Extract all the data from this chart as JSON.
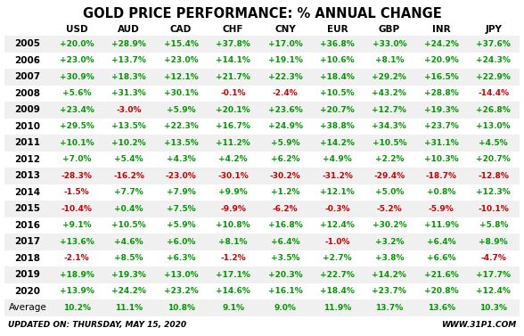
{
  "title": "GOLD PRICE PERFORMANCE: % ANNUAL CHANGE",
  "columns": [
    "USD",
    "AUD",
    "CAD",
    "CHF",
    "CNY",
    "EUR",
    "GBP",
    "INR",
    "JPY"
  ],
  "rows": [
    {
      "year": "2005",
      "values": [
        "+20.0%",
        "+28.9%",
        "+15.4%",
        "+37.8%",
        "+17.0%",
        "+36.8%",
        "+33.0%",
        "+24.2%",
        "+37.6%"
      ]
    },
    {
      "year": "2006",
      "values": [
        "+23.0%",
        "+13.7%",
        "+23.0%",
        "+14.1%",
        "+19.1%",
        "+10.6%",
        "+8.1%",
        "+20.9%",
        "+24.3%"
      ]
    },
    {
      "year": "2007",
      "values": [
        "+30.9%",
        "+18.3%",
        "+12.1%",
        "+21.7%",
        "+22.3%",
        "+18.4%",
        "+29.2%",
        "+16.5%",
        "+22.9%"
      ]
    },
    {
      "year": "2008",
      "values": [
        "+5.6%",
        "+31.3%",
        "+30.1%",
        "-0.1%",
        "-2.4%",
        "+10.5%",
        "+43.2%",
        "+28.8%",
        "-14.4%"
      ]
    },
    {
      "year": "2009",
      "values": [
        "+23.4%",
        "-3.0%",
        "+5.9%",
        "+20.1%",
        "+23.6%",
        "+20.7%",
        "+12.7%",
        "+19.3%",
        "+26.8%"
      ]
    },
    {
      "year": "2010",
      "values": [
        "+29.5%",
        "+13.5%",
        "+22.3%",
        "+16.7%",
        "+24.9%",
        "+38.8%",
        "+34.3%",
        "+23.7%",
        "+13.0%"
      ]
    },
    {
      "year": "2011",
      "values": [
        "+10.1%",
        "+10.2%",
        "+13.5%",
        "+11.2%",
        "+5.9%",
        "+14.2%",
        "+10.5%",
        "+31.1%",
        "+4.5%"
      ]
    },
    {
      "year": "2012",
      "values": [
        "+7.0%",
        "+5.4%",
        "+4.3%",
        "+4.2%",
        "+6.2%",
        "+4.9%",
        "+2.2%",
        "+10.3%",
        "+20.7%"
      ]
    },
    {
      "year": "2013",
      "values": [
        "-28.3%",
        "-16.2%",
        "-23.0%",
        "-30.1%",
        "-30.2%",
        "-31.2%",
        "-29.4%",
        "-18.7%",
        "-12.8%"
      ]
    },
    {
      "year": "2014",
      "values": [
        "-1.5%",
        "+7.7%",
        "+7.9%",
        "+9.9%",
        "+1.2%",
        "+12.1%",
        "+5.0%",
        "+0.8%",
        "+12.3%"
      ]
    },
    {
      "year": "2015",
      "values": [
        "-10.4%",
        "+0.4%",
        "+7.5%",
        "-9.9%",
        "-6.2%",
        "-0.3%",
        "-5.2%",
        "-5.9%",
        "-10.1%"
      ]
    },
    {
      "year": "2016",
      "values": [
        "+9.1%",
        "+10.5%",
        "+5.9%",
        "+10.8%",
        "+16.8%",
        "+12.4%",
        "+30.2%",
        "+11.9%",
        "+5.8%"
      ]
    },
    {
      "year": "2017",
      "values": [
        "+13.6%",
        "+4.6%",
        "+6.0%",
        "+8.1%",
        "+6.4%",
        "-1.0%",
        "+3.2%",
        "+6.4%",
        "+8.9%"
      ]
    },
    {
      "year": "2018",
      "values": [
        "-2.1%",
        "+8.5%",
        "+6.3%",
        "-1.2%",
        "+3.5%",
        "+2.7%",
        "+3.8%",
        "+6.6%",
        "-4.7%"
      ]
    },
    {
      "year": "2019",
      "values": [
        "+18.9%",
        "+19.3%",
        "+13.0%",
        "+17.1%",
        "+20.3%",
        "+22.7%",
        "+14.2%",
        "+21.6%",
        "+17.7%"
      ]
    },
    {
      "year": "2020",
      "values": [
        "+13.9%",
        "+24.2%",
        "+23.2%",
        "+14.6%",
        "+16.1%",
        "+18.4%",
        "+23.7%",
        "+20.8%",
        "+12.4%"
      ]
    }
  ],
  "average": {
    "year": "Average",
    "values": [
      "10.2%",
      "11.1%",
      "10.8%",
      "9.1%",
      "9.0%",
      "11.9%",
      "13.7%",
      "13.6%",
      "10.3%"
    ]
  },
  "footer_left": "UPDATED ON: THURSDAY, MAY 15, 2020",
  "footer_right": "WWW.31P1.COM",
  "positive_color": "#009900",
  "negative_color": "#cc0000",
  "average_color": "#009900",
  "bg_color_odd": "#f0f0f0",
  "bg_color_even": "#ffffff",
  "title_fontsize": 10.5,
  "header_fontsize": 7.5,
  "data_fontsize": 6.5,
  "year_fontsize": 7.5,
  "footer_fontsize": 6.5
}
